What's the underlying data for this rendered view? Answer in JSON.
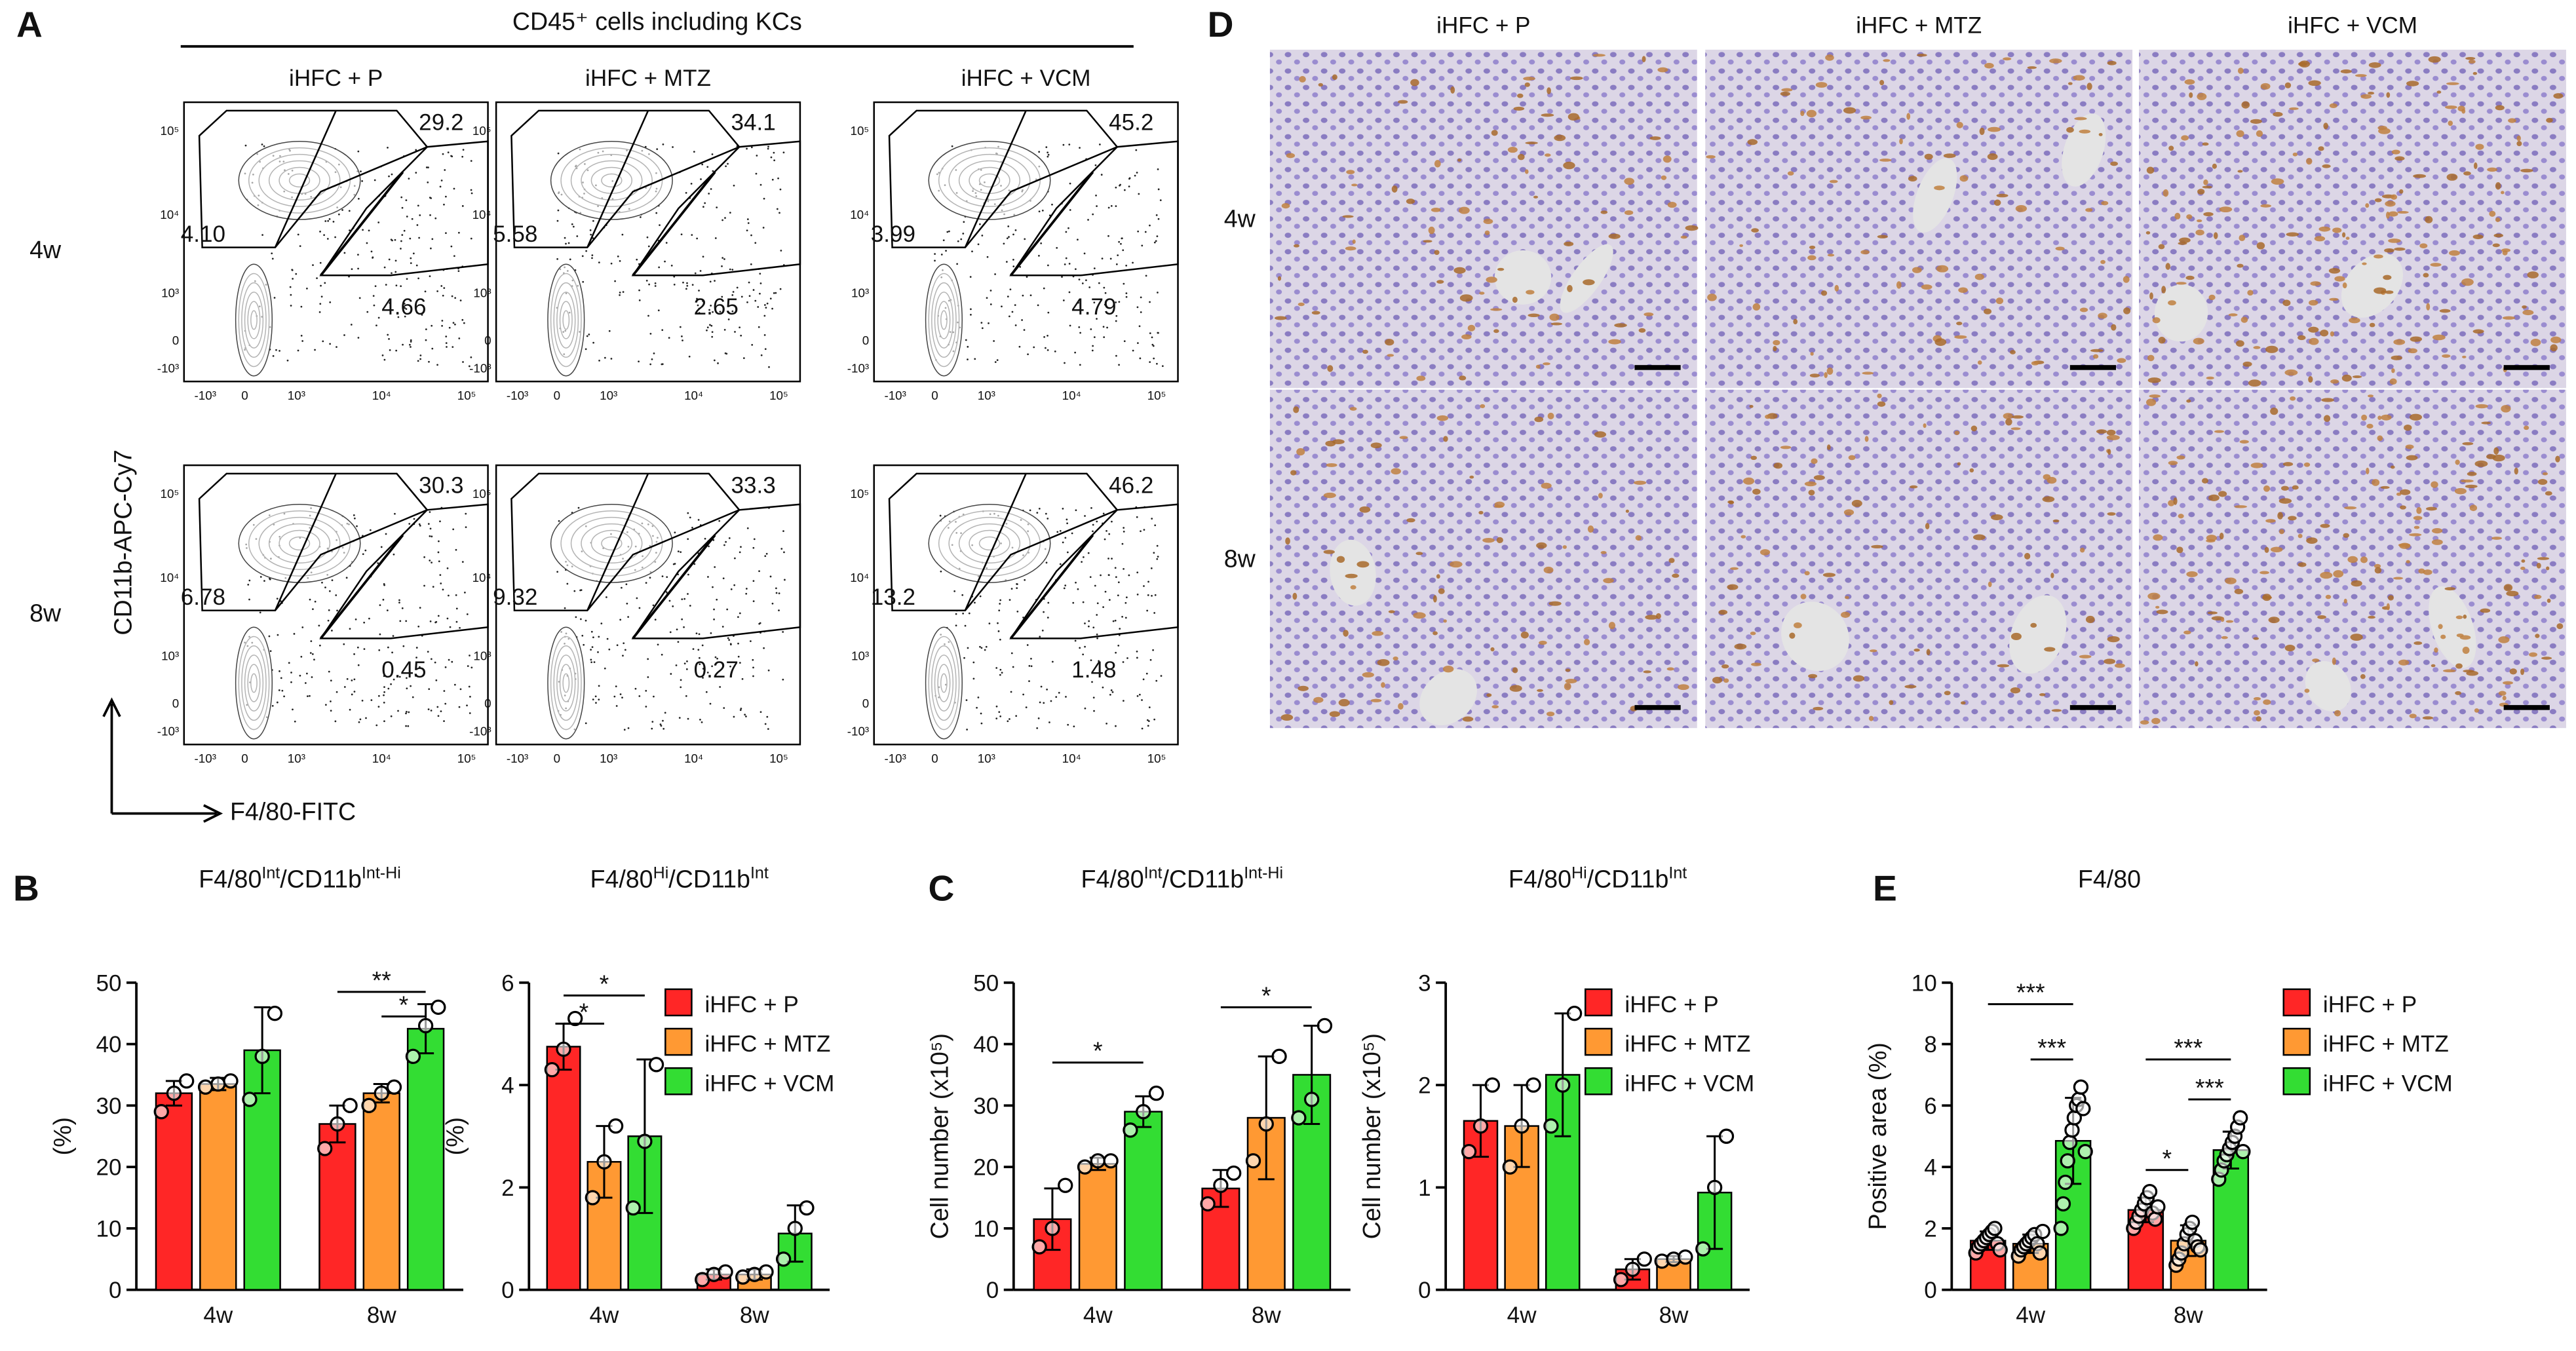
{
  "flow": {
    "label": "A",
    "header": "CD45⁺ cells including KCs",
    "columns": [
      "iHFC + P",
      "iHFC + MTZ",
      "iHFC + VCM"
    ],
    "rows": [
      "4w",
      "8w"
    ],
    "y_label": "CD11b-APC-Cy7",
    "x_label": "F4/80-FITC",
    "axis_ticks": [
      "-10³",
      "0",
      "10³",
      "10⁴",
      "10⁵"
    ],
    "gates": [
      [
        [
          "29.2",
          "4.10",
          "4.66"
        ],
        [
          "34.1",
          "5.58",
          "2.65"
        ],
        [
          "45.2",
          "3.99",
          "4.79"
        ]
      ],
      [
        [
          "30.3",
          "6.78",
          "0.45"
        ],
        [
          "33.3",
          "9.32",
          "0.27"
        ],
        [
          "46.2",
          "13.2",
          "1.48"
        ]
      ]
    ]
  },
  "micrographs": {
    "label": "D",
    "columns": [
      "iHFC + P",
      "iHFC + MTZ",
      "iHFC + VCM"
    ],
    "rows": [
      "4w",
      "8w"
    ]
  },
  "chart_data": [
    {
      "type": "bar",
      "label": "B",
      "title": [
        "F4/80",
        "Int",
        "/CD11b",
        "Int-Hi"
      ],
      "y_label": "(%)",
      "categories": [
        "4w",
        "8w"
      ],
      "ylim": [
        0,
        50
      ],
      "yticks": [
        0,
        10,
        20,
        30,
        40,
        50
      ],
      "series": [
        {
          "name": "iHFC + P",
          "color": "#ff2626",
          "values": [
            32,
            27
          ],
          "errors": [
            2,
            3
          ],
          "points": [
            [
              29,
              32,
              34
            ],
            [
              23,
              27,
              30
            ]
          ]
        },
        {
          "name": "iHFC + MTZ",
          "color": "#ff9933",
          "values": [
            33.5,
            32
          ],
          "errors": [
            1,
            1.5
          ],
          "points": [
            [
              33,
              33.5,
              34
            ],
            [
              30,
              32,
              33
            ]
          ]
        },
        {
          "name": "iHFC + VCM",
          "color": "#33dd33",
          "values": [
            39,
            42.5
          ],
          "errors": [
            7,
            4
          ],
          "points": [
            [
              31,
              38,
              45
            ],
            [
              38,
              43,
              46
            ]
          ]
        }
      ],
      "annotations": [
        {
          "text": "**",
          "y": 48.5,
          "pair": [
            [
              1,
              0
            ],
            [
              1,
              2
            ]
          ]
        },
        {
          "text": "*",
          "y": 44.5,
          "pair": [
            [
              1,
              1
            ],
            [
              1,
              2
            ]
          ]
        }
      ]
    },
    {
      "type": "bar",
      "title": [
        "F4/80",
        "Hi",
        "/CD11b",
        "Int"
      ],
      "y_label": "(%)",
      "categories": [
        "4w",
        "8w"
      ],
      "ylim": [
        0,
        6
      ],
      "yticks": [
        0,
        2,
        4,
        6
      ],
      "legend": "upper right",
      "series": [
        {
          "name": "iHFC + P",
          "color": "#ff2626",
          "values": [
            4.75,
            0.3
          ],
          "errors": [
            0.45,
            0.1
          ],
          "points": [
            [
              4.3,
              4.7,
              5.3
            ],
            [
              0.2,
              0.3,
              0.35
            ]
          ]
        },
        {
          "name": "iHFC + MTZ",
          "color": "#ff9933",
          "values": [
            2.5,
            0.3
          ],
          "errors": [
            0.7,
            0.1
          ],
          "points": [
            [
              1.8,
              2.5,
              3.2
            ],
            [
              0.25,
              0.3,
              0.35
            ]
          ]
        },
        {
          "name": "iHFC + VCM",
          "color": "#33dd33",
          "values": [
            3,
            1.1
          ],
          "errors": [
            1.5,
            0.55
          ],
          "points": [
            [
              1.6,
              2.9,
              4.4
            ],
            [
              0.6,
              1.2,
              1.6
            ]
          ]
        }
      ],
      "annotations": [
        {
          "text": "*",
          "y": 5.2,
          "pair": [
            [
              0,
              0
            ],
            [
              0,
              1
            ]
          ]
        },
        {
          "text": "*",
          "y": 5.75,
          "pair": [
            [
              0,
              0
            ],
            [
              0,
              2
            ]
          ]
        }
      ]
    },
    {
      "type": "bar",
      "label": "C",
      "title": [
        "F4/80",
        "Int",
        "/CD11b",
        "Int-Hi"
      ],
      "y_label": "Cell number (x10⁵)",
      "categories": [
        "4w",
        "8w"
      ],
      "ylim": [
        0,
        50
      ],
      "yticks": [
        0,
        10,
        20,
        30,
        40,
        50
      ],
      "series": [
        {
          "name": "iHFC + P",
          "color": "#ff2626",
          "values": [
            11.5,
            16.5
          ],
          "errors": [
            5,
            3
          ],
          "points": [
            [
              7,
              10,
              17
            ],
            [
              14,
              17,
              19
            ]
          ]
        },
        {
          "name": "iHFC + MTZ",
          "color": "#ff9933",
          "values": [
            20.5,
            28
          ],
          "errors": [
            1,
            10
          ],
          "points": [
            [
              20,
              21,
              21
            ],
            [
              21,
              27,
              38
            ]
          ]
        },
        {
          "name": "iHFC + VCM",
          "color": "#33dd33",
          "values": [
            29,
            35
          ],
          "errors": [
            2.5,
            8
          ],
          "points": [
            [
              26,
              29,
              32
            ],
            [
              28,
              31,
              43
            ]
          ]
        }
      ],
      "annotations": [
        {
          "text": "*",
          "y": 37,
          "pair": [
            [
              0,
              0
            ],
            [
              0,
              2
            ]
          ]
        },
        {
          "text": "*",
          "y": 46,
          "pair": [
            [
              1,
              0
            ],
            [
              1,
              2
            ]
          ]
        }
      ]
    },
    {
      "type": "bar",
      "title": [
        "F4/80",
        "Hi",
        "/CD11b",
        "Int"
      ],
      "y_label": "Cell number (x10⁵)",
      "categories": [
        "4w",
        "8w"
      ],
      "ylim": [
        0,
        3
      ],
      "yticks": [
        0,
        1,
        2,
        3
      ],
      "legend": "upper right",
      "series": [
        {
          "name": "iHFC + P",
          "color": "#ff2626",
          "values": [
            1.65,
            0.2
          ],
          "errors": [
            0.35,
            0.1
          ],
          "points": [
            [
              1.35,
              1.6,
              2
            ],
            [
              0.1,
              0.2,
              0.3
            ]
          ]
        },
        {
          "name": "iHFC + MTZ",
          "color": "#ff9933",
          "values": [
            1.6,
            0.3
          ],
          "errors": [
            0.4,
            0.03
          ],
          "points": [
            [
              1.2,
              1.6,
              2
            ],
            [
              0.28,
              0.3,
              0.32
            ]
          ]
        },
        {
          "name": "iHFC + VCM",
          "color": "#33dd33",
          "values": [
            2.1,
            0.95
          ],
          "errors": [
            0.6,
            0.55
          ],
          "points": [
            [
              1.6,
              2,
              2.7
            ],
            [
              0.4,
              1,
              1.5
            ]
          ]
        }
      ],
      "annotations": []
    },
    {
      "type": "bar",
      "label": "E",
      "title": [
        "F4/80"
      ],
      "y_label": "Positive area (%)",
      "categories": [
        "4w",
        "8w"
      ],
      "ylim": [
        0,
        10
      ],
      "yticks": [
        0,
        2,
        4,
        6,
        8,
        10
      ],
      "legend": "right",
      "series": [
        {
          "name": "iHFC + P",
          "color": "#ff2626",
          "values": [
            1.6,
            2.6
          ],
          "errors": [
            0.3,
            0.4
          ],
          "points": [
            [
              1.2,
              1.4,
              1.5,
              1.6,
              1.7,
              1.8,
              1.9,
              2,
              1.5,
              1.3
            ],
            [
              2,
              2.2,
              2.4,
              2.6,
              2.8,
              3,
              3.2,
              2.5,
              2.3,
              2.7
            ]
          ]
        },
        {
          "name": "iHFC + MTZ",
          "color": "#ff9933",
          "values": [
            1.5,
            1.6
          ],
          "errors": [
            0.3,
            0.5
          ],
          "points": [
            [
              1.1,
              1.3,
              1.4,
              1.5,
              1.6,
              1.7,
              1.8,
              1.5,
              1.2,
              1.9
            ],
            [
              0.8,
              1,
              1.2,
              1.5,
              1.8,
              2,
              2.2,
              1.6,
              1.4,
              1.3
            ]
          ]
        },
        {
          "name": "iHFC + VCM",
          "color": "#33dd33",
          "values": [
            4.85,
            4.55
          ],
          "errors": [
            1.4,
            0.6
          ],
          "points": [
            [
              2,
              2.8,
              3.5,
              4.2,
              4.8,
              5.2,
              5.6,
              6,
              6.2,
              6.6,
              5.9,
              4.5
            ],
            [
              3.6,
              3.9,
              4.2,
              4.4,
              4.6,
              4.8,
              5,
              5.3,
              5.6,
              4.5
            ]
          ]
        }
      ],
      "annotations": [
        {
          "text": "***",
          "y": 9.3,
          "pair": [
            [
              0,
              0
            ],
            [
              0,
              2
            ]
          ]
        },
        {
          "text": "***",
          "y": 7.5,
          "pair": [
            [
              0,
              1
            ],
            [
              0,
              2
            ]
          ]
        },
        {
          "text": "***",
          "y": 7.5,
          "pair": [
            [
              1,
              0
            ],
            [
              1,
              2
            ]
          ]
        },
        {
          "text": "*",
          "y": 3.9,
          "pair": [
            [
              1,
              0
            ],
            [
              1,
              1
            ]
          ]
        },
        {
          "text": "***",
          "y": 6.2,
          "pair": [
            [
              1,
              1
            ],
            [
              1,
              2
            ]
          ]
        }
      ]
    }
  ]
}
